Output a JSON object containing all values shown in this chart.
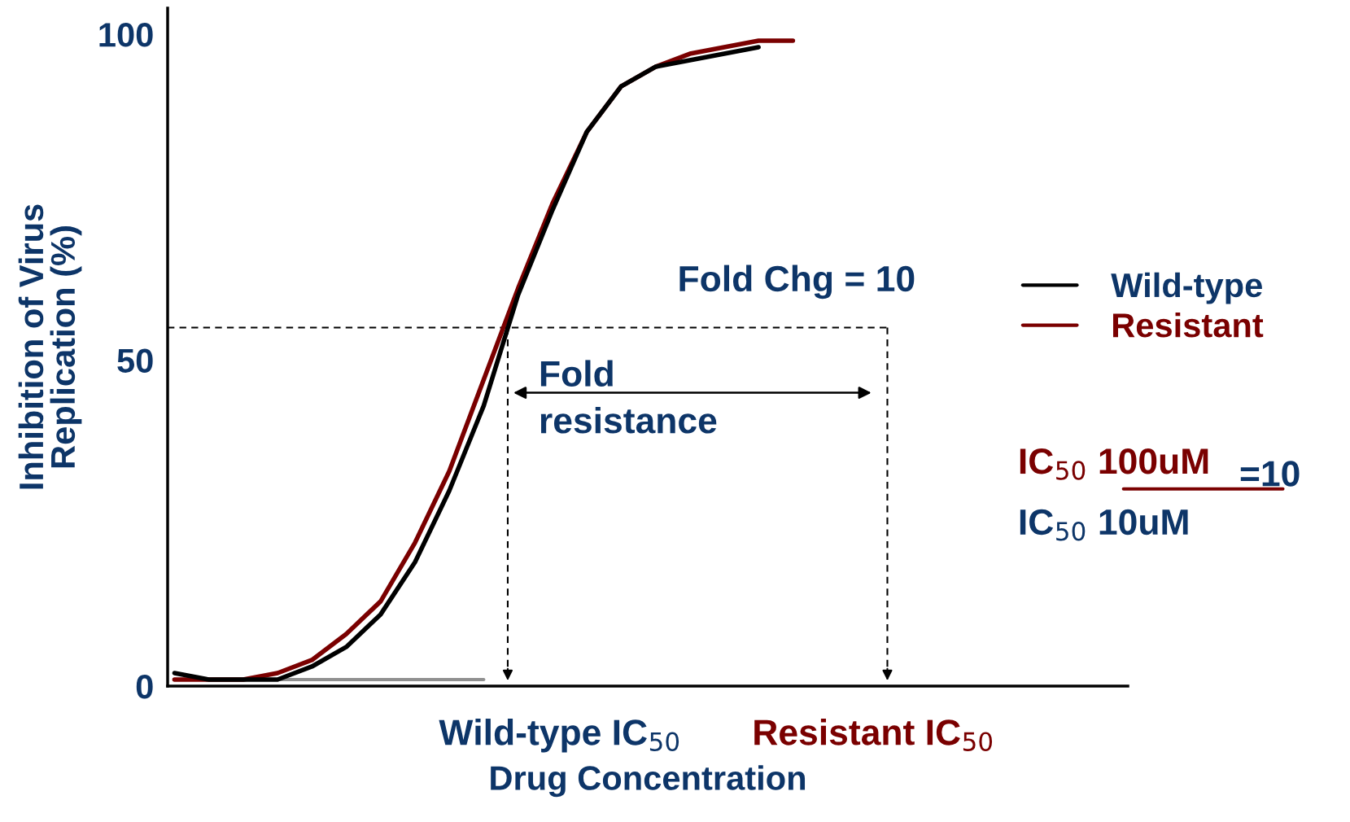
{
  "chart_data": {
    "type": "line",
    "ylabel": "Inhibition of Virus\nReplication (%)",
    "xlabel": "Drug Concentration",
    "categories": [
      null,
      null,
      null,
      null,
      null,
      null,
      null,
      null,
      null,
      null,
      null,
      null,
      null,
      null,
      null,
      null,
      null,
      null,
      null,
      null,
      null,
      null,
      null,
      null,
      null,
      null,
      null,
      null
    ],
    "series": [
      {
        "name": "Wild-type",
        "color": "#000000",
        "values": [
          2,
          1,
          1,
          1,
          3,
          6,
          11,
          19,
          30,
          43,
          60,
          73,
          85,
          92,
          95,
          96,
          97,
          98,
          null,
          null,
          null,
          null,
          null,
          null,
          null,
          null,
          null,
          null
        ]
      },
      {
        "name": "Resistant",
        "color": "#7a0000",
        "values": [
          1,
          1,
          1,
          2,
          4,
          8,
          13,
          22,
          33,
          47,
          61,
          74,
          85,
          92,
          95,
          97,
          98,
          99,
          99,
          null,
          null,
          null,
          null,
          null,
          null,
          null,
          null,
          null
        ]
      },
      {
        "color": "#909090",
        "values": [
          1,
          1,
          1,
          1,
          1,
          1,
          1,
          1,
          1,
          1,
          null,
          null,
          null,
          null,
          null,
          null,
          null,
          null,
          null,
          null,
          null,
          null,
          null,
          null,
          null,
          null,
          null,
          null
        ]
      }
    ],
    "ylim": [
      0,
      104
    ],
    "yticks": [
      0,
      50,
      100
    ],
    "legend": "right",
    "grid": false,
    "marker": "none",
    "line_style": "solid",
    "annotations": [
      "Fold Chg = 10",
      "Fold\nresistance",
      "IC$_{50}$ 100uM",
      "=10",
      "IC$_{50}$ 10uM",
      "Wild-type IC$_{50}$",
      "Resistant IC$_{50}$"
    ]
  }
}
